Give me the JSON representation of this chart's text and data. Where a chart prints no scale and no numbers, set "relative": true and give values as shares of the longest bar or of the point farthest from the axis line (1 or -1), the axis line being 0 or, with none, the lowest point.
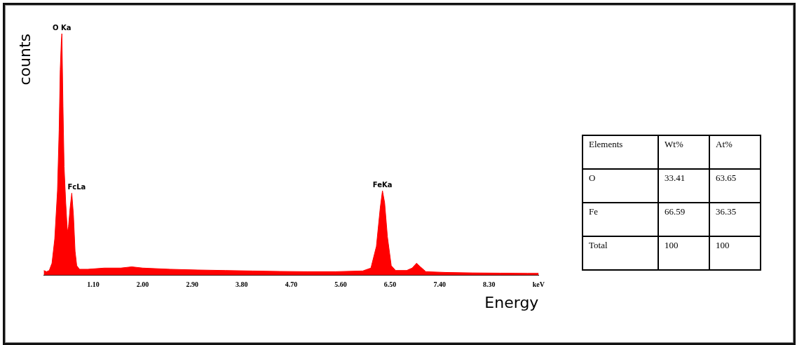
{
  "chart_data": [
    {
      "type": "area",
      "relative": true,
      "xlabel": "Energy",
      "ylabel": "counts",
      "color": "#ff0000",
      "x": [
        0.2,
        0.25,
        0.3,
        0.35,
        0.4,
        0.45,
        0.48,
        0.5,
        0.52,
        0.53,
        0.55,
        0.57,
        0.6,
        0.63,
        0.65,
        0.68,
        0.71,
        0.74,
        0.77,
        0.8,
        0.85,
        1.0,
        1.3,
        1.6,
        1.8,
        2.0,
        2.5,
        3.0,
        3.5,
        4.0,
        4.5,
        5.0,
        5.5,
        6.0,
        6.15,
        6.25,
        6.32,
        6.36,
        6.4,
        6.45,
        6.52,
        6.6,
        6.8,
        6.9,
        6.98,
        7.05,
        7.15,
        7.5,
        8.0,
        8.5,
        9.0,
        9.2
      ],
      "values": [
        0.02,
        0.015,
        0.02,
        0.05,
        0.15,
        0.35,
        0.6,
        0.85,
        0.97,
        1.0,
        0.7,
        0.45,
        0.3,
        0.18,
        0.2,
        0.28,
        0.34,
        0.25,
        0.1,
        0.04,
        0.025,
        0.025,
        0.03,
        0.03,
        0.035,
        0.03,
        0.025,
        0.022,
        0.02,
        0.018,
        0.016,
        0.015,
        0.015,
        0.018,
        0.03,
        0.12,
        0.28,
        0.35,
        0.3,
        0.16,
        0.04,
        0.02,
        0.02,
        0.03,
        0.05,
        0.035,
        0.015,
        0.012,
        0.01,
        0.009,
        0.008,
        0.008
      ],
      "xlim": [
        0.2,
        9.2
      ],
      "xticks": [
        {
          "value": 1.1,
          "label": "1.10"
        },
        {
          "value": 2.0,
          "label": "2.00"
        },
        {
          "value": 2.9,
          "label": "2.90"
        },
        {
          "value": 3.8,
          "label": "3.80"
        },
        {
          "value": 4.7,
          "label": "4.70"
        },
        {
          "value": 5.6,
          "label": "5.60"
        },
        {
          "value": 6.5,
          "label": "6.50"
        },
        {
          "value": 7.4,
          "label": "7.40"
        },
        {
          "value": 8.3,
          "label": "8.30"
        },
        {
          "value": 9.2,
          "label": "keV"
        }
      ],
      "annotations": [
        {
          "text": "O Ka",
          "x": 0.53,
          "y": 1.0
        },
        {
          "text": "FcLa",
          "x": 0.71,
          "y": 0.34
        },
        {
          "text": "FeKa",
          "x": 6.36,
          "y": 0.35
        }
      ]
    },
    {
      "type": "other",
      "annotations": [
        "Elements",
        "Wt%",
        "At%",
        "O",
        "33.41",
        "63.65",
        "Fe",
        "66.59",
        "36.35",
        "Total",
        "100",
        "100"
      ]
    }
  ]
}
